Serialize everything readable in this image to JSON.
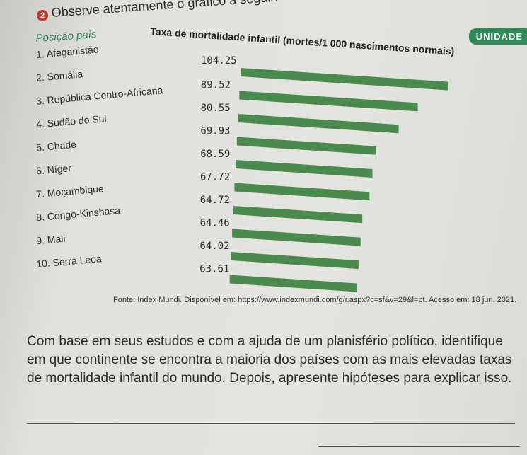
{
  "question_number": "2",
  "instruction": "Observe atentamente o gráfico a seguir:",
  "badge": "UNIDADE",
  "headers": {
    "position_country": "Posição país"
  },
  "chart_data": {
    "type": "bar",
    "orientation": "horizontal",
    "title": "Taxa de mortalidade infantil (mortes/1 000 nascimentos normais)",
    "categories": [
      "1. Afeganistão",
      "2. Somália",
      "3. República Centro-Africana",
      "4. Sudão do Sul",
      "5. Chade",
      "6. Níger",
      "7. Moçambique",
      "8. Congo-Kinshasa",
      "9. Mali",
      "10. Serra Leoa"
    ],
    "values": [
      104.25,
      89.52,
      80.55,
      69.93,
      68.59,
      67.72,
      64.72,
      64.46,
      64.02,
      63.61
    ],
    "value_labels": [
      "104.25",
      "89.52",
      "80.55",
      "69.93",
      "68.59",
      "67.72",
      "64.72",
      "64.46",
      "64.02",
      "63.61"
    ],
    "xlim": [
      0,
      110
    ],
    "bar_color": "#4a8a4c"
  },
  "source": "Fonte: Index Mundi. Disponível em: https://www.indexmundi.com/g/r.aspx?c=sf&v=29&l=pt. Acesso em: 18 jun. 2021.",
  "question_text": "Com base em seus estudos e com a ajuda de um planisfério político, identifique em que continente se encontra a maioria dos países com as mais elevadas taxas de mortalidade infantil do mundo. Depois, apresente hipóteses para explicar isso."
}
